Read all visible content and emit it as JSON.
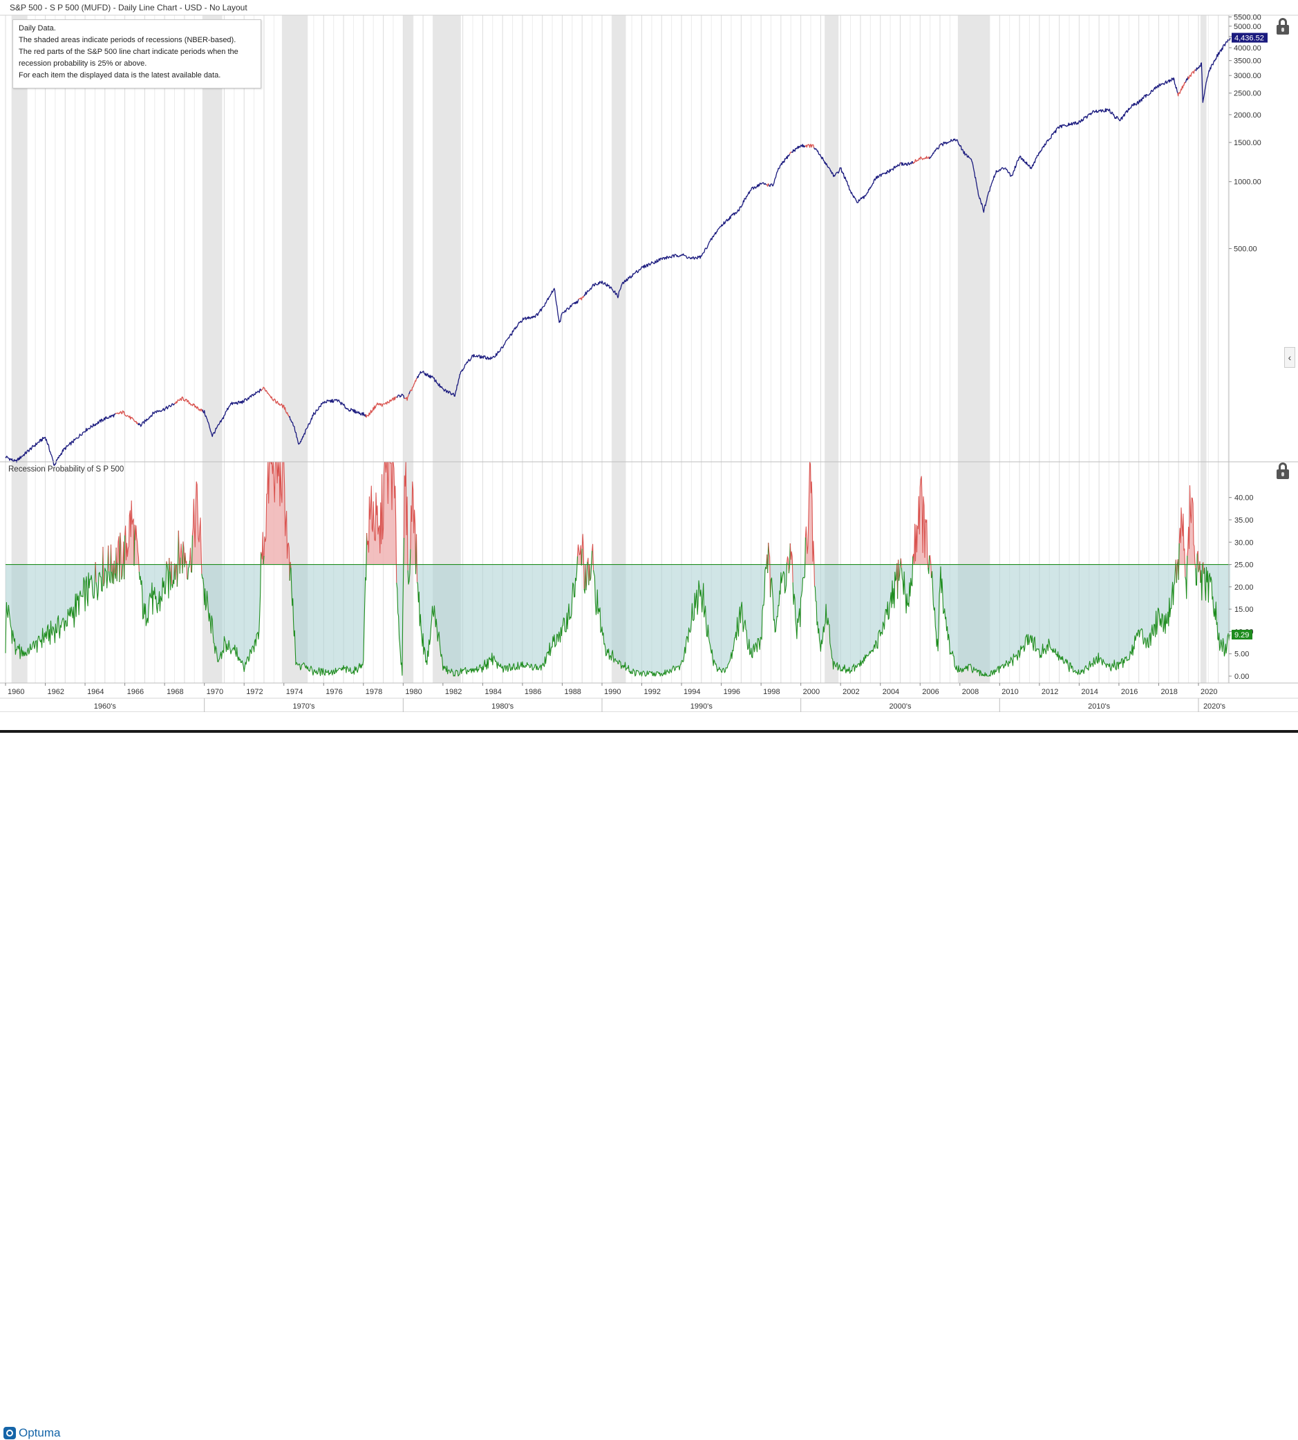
{
  "window": {
    "title": "S&P 500 - S P 500 (MUFD) - Daily Line Chart - USD - No Layout"
  },
  "info_box": {
    "lines": [
      "Daily Data.",
      "The shaded areas indicate periods of recessions (NBER-based).",
      "The red parts of the S&P 500 line chart indicate periods when the",
      "recession probability is 25% or above.",
      "For each item the displayed data is the latest available data."
    ]
  },
  "panel2": {
    "label": "Recession Probability of S P 500"
  },
  "footer": {
    "logo_text": "Optuma"
  },
  "icons": [
    "lock-icon",
    "collapse-arrow-icon",
    "optuma-logo-icon"
  ],
  "colors": {
    "sp500_line": "#1a1a7e",
    "sp500_high_prob": "#d9534f",
    "probability_line": "#1e8c1e",
    "probability_fill": "#a9cfd1",
    "probability_high_fill": "#f0b4b4",
    "probability_high_line": "#d9534f",
    "recession_shade": "#e6e6e6",
    "threshold_line": "#1e8c1e",
    "last_price_badge": "#1a1a7e",
    "last_prob_badge": "#1e8c1e"
  },
  "chart_data": [
    {
      "type": "line",
      "title": "S&P 500",
      "y_scale": "log",
      "ylim": [
        55,
        5600
      ],
      "xlim": [
        1960.0,
        2021.6
      ],
      "y_tick_labels": [
        "5500.00",
        "5000.00",
        "4500.00",
        "4000.00",
        "3500.00",
        "3000.00",
        "2500.00",
        "2000.00",
        "1500.00",
        "1000.00",
        "500.00"
      ],
      "y_ticks": [
        5500,
        5000,
        4500,
        4000,
        3500,
        3000,
        2500,
        2000,
        1500,
        1000,
        500
      ],
      "last_value_label": "4,436.52",
      "last_value": 4436.52,
      "recession_periods": [
        [
          1960.3,
          1961.1
        ],
        [
          1969.9,
          1970.9
        ],
        [
          1973.9,
          1975.2
        ],
        [
          1980.0,
          1980.5
        ],
        [
          1981.5,
          1982.9
        ],
        [
          1990.5,
          1991.2
        ],
        [
          2001.2,
          2001.9
        ],
        [
          2007.9,
          2009.5
        ],
        [
          2020.1,
          2020.4
        ]
      ],
      "series": [
        {
          "x": [
            1960.0,
            1960.5,
            1961.0,
            1961.9,
            1962.0,
            1962.45,
            1962.9,
            1963.5,
            1964.0,
            1965.0,
            1965.9,
            1966.4,
            1966.8,
            1967.5,
            1968.0,
            1968.3,
            1968.9,
            1969.5,
            1970.0,
            1970.4,
            1970.9,
            1971.3,
            1971.9,
            1972.5,
            1973.0,
            1973.5,
            1974.0,
            1974.5,
            1974.75,
            1975.0,
            1975.5,
            1976.0,
            1976.7,
            1977.2,
            1978.0,
            1978.2,
            1978.7,
            1979.0,
            1979.9,
            1980.2,
            1980.9,
            1981.5,
            1982.0,
            1982.6,
            1982.9,
            1983.5,
            1984.5,
            1985.0,
            1986.0,
            1986.7,
            1987.0,
            1987.6,
            1987.85,
            1988.0,
            1989.0,
            1989.6,
            1990.0,
            1990.5,
            1990.8,
            1991.0,
            1992.0,
            1993.0,
            1994.0,
            1994.5,
            1995.0,
            1995.9,
            1996.9,
            1997.5,
            1998.0,
            1998.6,
            1998.9,
            1999.5,
            2000.0,
            2000.6,
            2001.0,
            2001.7,
            2002.0,
            2002.5,
            2002.8,
            2003.2,
            2003.8,
            2004.5,
            2005.0,
            2005.5,
            2006.0,
            2006.5,
            2007.0,
            2007.5,
            2007.8,
            2008.2,
            2008.6,
            2008.9,
            2009.2,
            2009.8,
            2010.3,
            2010.6,
            2011.0,
            2011.6,
            2012.0,
            2013.0,
            2014.0,
            2014.8,
            2015.5,
            2015.8,
            2016.1,
            2016.6,
            2017.0,
            2018.0,
            2018.75,
            2018.98,
            2019.5,
            2020.0,
            2020.15,
            2020.22,
            2020.5,
            2021.0,
            2021.6
          ],
          "y": [
            58,
            55,
            60,
            70,
            71,
            53,
            62,
            69,
            76,
            86,
            92,
            85,
            80,
            92,
            95,
            98,
            106,
            98,
            92,
            72,
            85,
            100,
            102,
            110,
            118,
            104,
            97,
            80,
            65,
            72,
            90,
            102,
            104,
            95,
            90,
            88,
            100,
            99,
            110,
            105,
            140,
            131,
            116,
            110,
            140,
            165,
            160,
            180,
            240,
            250,
            270,
            330,
            230,
            255,
            300,
            345,
            355,
            330,
            305,
            345,
            410,
            450,
            470,
            450,
            460,
            620,
            750,
            920,
            980,
            960,
            1150,
            1350,
            1450,
            1450,
            1300,
            1050,
            1150,
            900,
            810,
            850,
            1040,
            1120,
            1200,
            1200,
            1270,
            1280,
            1450,
            1530,
            1550,
            1350,
            1250,
            900,
            740,
            1100,
            1160,
            1050,
            1300,
            1150,
            1350,
            1760,
            1850,
            2080,
            2100,
            1950,
            1900,
            2170,
            2280,
            2700,
            2900,
            2450,
            2950,
            3250,
            3380,
            2240,
            3100,
            3750,
            4436.52
          ]
        }
      ]
    },
    {
      "type": "area",
      "title": "Recession Probability of S P 500",
      "ylim": [
        0,
        48
      ],
      "xlim": [
        1960.0,
        2021.6
      ],
      "threshold": 25,
      "y_tick_labels": [
        "40.00",
        "35.00",
        "30.00",
        "25.00",
        "20.00",
        "15.00",
        "10.00",
        "5.00",
        "0.00"
      ],
      "y_ticks": [
        40,
        35,
        30,
        25,
        20,
        15,
        10,
        5,
        0
      ],
      "last_value_label": "9.29",
      "last_value": 9.29,
      "series": [
        {
          "x": [
            1960.0,
            1960.05,
            1960.5,
            1961.0,
            1962.0,
            1963.0,
            1964.0,
            1964.8,
            1965.5,
            1966.0,
            1966.3,
            1966.5,
            1966.75,
            1967.0,
            1967.3,
            1967.6,
            1968.0,
            1968.5,
            1968.9,
            1969.3,
            1969.6,
            1969.8,
            1970.0,
            1970.4,
            1970.7,
            1971.0,
            1971.5,
            1972.0,
            1972.5,
            1972.75,
            1972.85,
            1973.0,
            1973.3,
            1973.6,
            1974.0,
            1974.2,
            1974.45,
            1974.6,
            1974.8,
            1975.0,
            1975.5,
            1976.0,
            1976.5,
            1977.0,
            1977.5,
            1978.0,
            1978.1,
            1978.4,
            1978.8,
            1979.1,
            1979.5,
            1979.8,
            1979.95,
            1980.1,
            1980.3,
            1980.5,
            1980.6,
            1980.9,
            1981.2,
            1981.5,
            1981.8,
            1982.0,
            1982.3,
            1982.6,
            1983.0,
            1983.5,
            1984.0,
            1984.5,
            1985.0,
            1985.5,
            1986.0,
            1986.5,
            1987.0,
            1987.5,
            1988.0,
            1988.5,
            1988.8,
            1989.0,
            1989.2,
            1989.5,
            1989.8,
            1990.2,
            1990.6,
            1991.0,
            1991.5,
            1992.0,
            1993.0,
            1994.0,
            1994.5,
            1995.0,
            1995.3,
            1995.6,
            1996.0,
            1996.3,
            1996.6,
            1997.0,
            1997.5,
            1998.0,
            1998.3,
            1998.7,
            1999.0,
            1999.5,
            1999.8,
            2000.0,
            2000.3,
            2000.45,
            2000.6,
            2000.75,
            2001.0,
            2001.3,
            2001.6,
            2002.0,
            2002.5,
            2003.0,
            2003.5,
            2004.0,
            2004.5,
            2005.0,
            2005.4,
            2005.7,
            2006.0,
            2006.3,
            2006.6,
            2006.9,
            2007.0,
            2007.2,
            2007.5,
            2007.8,
            2008.0,
            2008.5,
            2009.0,
            2009.5,
            2010.0,
            2010.5,
            2011.0,
            2011.5,
            2012.0,
            2012.5,
            2013.0,
            2013.5,
            2014.0,
            2014.5,
            2015.0,
            2015.5,
            2016.0,
            2016.5,
            2017.0,
            2017.5,
            2018.0,
            2018.3,
            2018.6,
            2018.8,
            2019.0,
            2019.2,
            2019.4,
            2019.6,
            2019.85,
            2020.0,
            2020.3,
            2020.6,
            2020.85,
            2021.0,
            2021.3,
            2021.6
          ],
          "y": [
            6,
            16,
            6,
            5,
            9,
            12,
            18,
            24,
            25,
            27,
            35,
            30,
            22,
            13,
            18,
            15,
            20,
            25,
            28,
            26,
            38,
            30,
            18,
            10,
            3,
            7,
            6,
            2,
            6,
            10,
            25,
            30,
            48,
            48,
            45,
            28,
            15,
            3,
            2,
            3,
            1,
            1,
            1,
            1.5,
            1,
            3,
            25,
            38,
            30,
            45,
            48,
            8,
            1,
            48,
            20,
            48,
            30,
            10,
            3,
            15,
            8,
            2,
            1,
            0.5,
            1,
            1,
            2,
            4,
            1.5,
            2,
            3,
            2,
            2,
            7,
            10,
            16,
            25,
            28,
            20,
            25,
            15,
            6,
            4,
            3,
            1,
            0.5,
            0.3,
            3,
            13,
            20,
            10,
            3,
            1,
            2,
            6,
            15,
            5,
            8,
            28,
            12,
            20,
            26,
            10,
            15,
            30,
            45,
            30,
            16,
            6,
            15,
            3,
            2,
            1,
            3,
            5,
            9,
            15,
            25,
            15,
            28,
            40,
            30,
            20,
            5,
            25,
            15,
            6,
            2,
            1,
            2,
            0.5,
            0.3,
            1.5,
            3,
            5,
            9,
            5,
            7,
            4,
            2,
            1,
            2,
            4,
            2,
            3,
            4,
            10,
            8,
            14,
            12,
            16,
            22,
            26,
            35,
            20,
            40,
            25,
            22,
            20,
            20,
            15,
            8,
            6,
            9.29
          ]
        }
      ]
    },
    {
      "type": "table",
      "title": "Time axis",
      "year_labels": [
        "1960",
        "1962",
        "1964",
        "1966",
        "1968",
        "1970",
        "1972",
        "1974",
        "1976",
        "1978",
        "1980",
        "1982",
        "1984",
        "1986",
        "1988",
        "1990",
        "1992",
        "1994",
        "1996",
        "1998",
        "2000",
        "2002",
        "2004",
        "2006",
        "2008",
        "2010",
        "2012",
        "2014",
        "2016",
        "2018",
        "2020"
      ],
      "decade_labels": [
        "1960's",
        "1970's",
        "1980's",
        "1990's",
        "2000's",
        "2010's",
        "2020's"
      ]
    }
  ]
}
